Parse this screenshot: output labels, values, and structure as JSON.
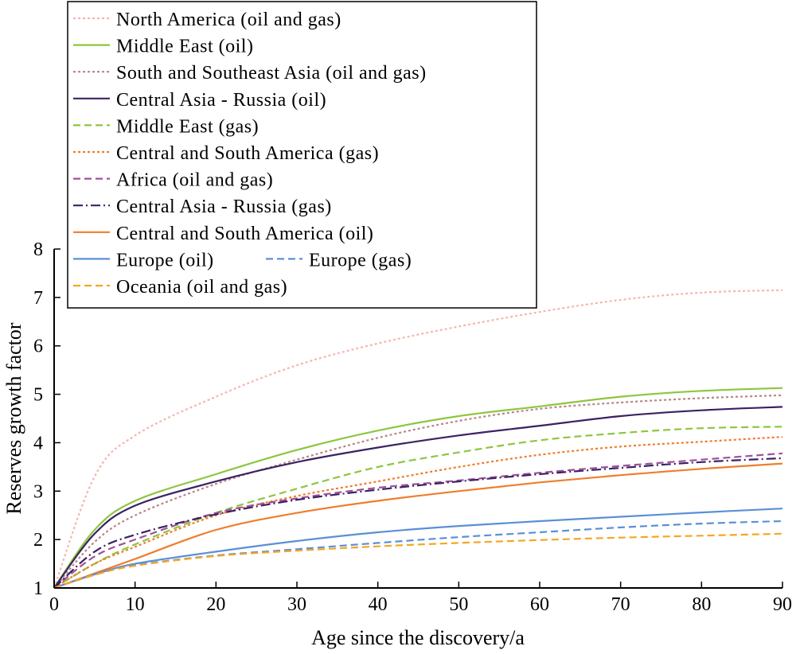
{
  "chart_data": {
    "type": "line",
    "xlabel": "Age since the discovery/a",
    "ylabel": "Reserves growth factor",
    "xlim": [
      0,
      90
    ],
    "ylim": [
      1,
      8
    ],
    "xticks": [
      0,
      10,
      20,
      30,
      40,
      50,
      60,
      70,
      80,
      90
    ],
    "yticks": [
      1,
      2,
      3,
      4,
      5,
      6,
      7,
      8
    ],
    "grid": false,
    "legend_position": "top-left",
    "x": [
      0,
      5,
      10,
      20,
      30,
      40,
      50,
      60,
      70,
      80,
      90
    ],
    "series": [
      {
        "name": "North America (oil and gas)",
        "color": "#f4b6b0",
        "style": "dotted",
        "values": [
          1.0,
          3.3,
          4.15,
          4.95,
          5.6,
          6.05,
          6.4,
          6.7,
          6.95,
          7.1,
          7.15
        ]
      },
      {
        "name": "Middle East (oil)",
        "color": "#8dc63f",
        "style": "solid",
        "values": [
          1.0,
          2.2,
          2.8,
          3.35,
          3.85,
          4.25,
          4.55,
          4.75,
          4.95,
          5.07,
          5.13
        ]
      },
      {
        "name": "South and Southeast Asia (oil and gas)",
        "color": "#b88585",
        "style": "dotted",
        "values": [
          1.0,
          1.95,
          2.5,
          3.15,
          3.65,
          4.1,
          4.45,
          4.7,
          4.83,
          4.92,
          4.98
        ]
      },
      {
        "name": "Central Asia - Russia (oil)",
        "color": "#3b2263",
        "style": "solid",
        "values": [
          1.0,
          2.12,
          2.7,
          3.2,
          3.6,
          3.9,
          4.15,
          4.35,
          4.55,
          4.67,
          4.74
        ]
      },
      {
        "name": "Middle East (gas)",
        "color": "#8dc63f",
        "style": "dashed",
        "values": [
          1.0,
          1.5,
          1.9,
          2.55,
          3.05,
          3.5,
          3.8,
          4.05,
          4.2,
          4.3,
          4.33
        ]
      },
      {
        "name": "Central and South America (gas)",
        "color": "#f07d2a",
        "style": "dotted",
        "values": [
          1.0,
          1.5,
          1.85,
          2.5,
          2.9,
          3.2,
          3.5,
          3.75,
          3.92,
          4.02,
          4.12
        ]
      },
      {
        "name": "Africa (oil and gas)",
        "color": "#a0529a",
        "style": "dashed",
        "values": [
          1.0,
          1.65,
          2.0,
          2.55,
          2.85,
          3.07,
          3.22,
          3.38,
          3.52,
          3.65,
          3.78
        ]
      },
      {
        "name": "Central Asia - Russia (gas)",
        "color": "#3b2263",
        "style": "dashdot",
        "values": [
          1.0,
          1.75,
          2.1,
          2.52,
          2.82,
          3.03,
          3.2,
          3.35,
          3.48,
          3.6,
          3.68
        ]
      },
      {
        "name": "Central and South America (oil)",
        "color": "#f07d2a",
        "style": "solid",
        "values": [
          1.0,
          1.3,
          1.6,
          2.2,
          2.55,
          2.8,
          3.0,
          3.18,
          3.33,
          3.46,
          3.57
        ]
      },
      {
        "name": "Europe (oil)",
        "color": "#5b8fd6",
        "style": "solid",
        "values": [
          1.0,
          1.28,
          1.5,
          1.75,
          1.97,
          2.15,
          2.28,
          2.38,
          2.47,
          2.56,
          2.64
        ]
      },
      {
        "name": "Europe (gas)",
        "color": "#5b8fd6",
        "style": "dashed",
        "values": [
          1.0,
          1.27,
          1.47,
          1.67,
          1.8,
          1.93,
          2.05,
          2.15,
          2.25,
          2.33,
          2.38
        ]
      },
      {
        "name": "Oceania (oil and gas)",
        "color": "#f5a623",
        "style": "dashed",
        "values": [
          1.0,
          1.27,
          1.46,
          1.66,
          1.77,
          1.86,
          1.93,
          1.99,
          2.04,
          2.08,
          2.12
        ]
      }
    ]
  }
}
